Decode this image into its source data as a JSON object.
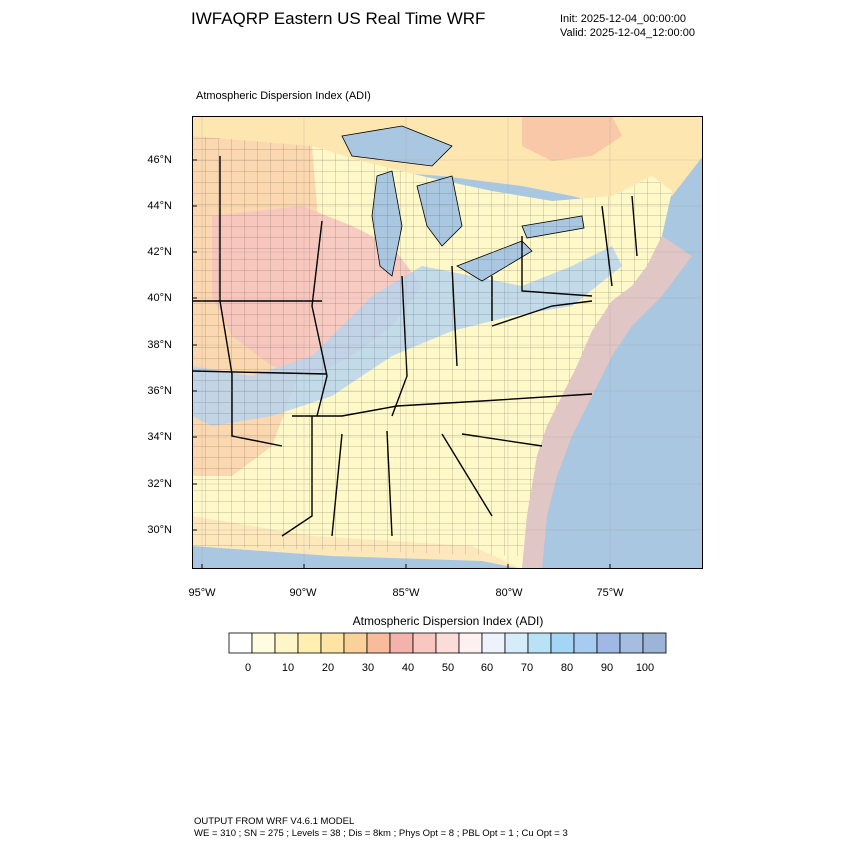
{
  "header": {
    "title": "IWFAQRP Eastern US Real Time WRF",
    "init": "Init: 2025-12-04_00:00:00",
    "valid": "Valid: 2025-12-04_12:00:00"
  },
  "field_title": "Atmospheric Dispersion Index   (ADI)",
  "lat_labels": [
    "46°N",
    "44°N",
    "42°N",
    "40°N",
    "38°N",
    "36°N",
    "34°N",
    "32°N",
    "30°N"
  ],
  "lon_labels": [
    "95°W",
    "90°W",
    "85°W",
    "80°W",
    "75°W"
  ],
  "colorbar": {
    "title": "Atmospheric Dispersion Index  (ADI)",
    "labels": [
      "0",
      "10",
      "20",
      "30",
      "40",
      "50",
      "60",
      "70",
      "80",
      "90",
      "100"
    ],
    "colors": [
      "#ffffff",
      "#fffce0",
      "#fff6c8",
      "#ffefb0",
      "#fde4a4",
      "#fbd19a",
      "#f6bc9c",
      "#f4b3aa",
      "#f8c7c0",
      "#fcdcd8",
      "#fdf0f0",
      "#eef2fc",
      "#d6ecf8",
      "#b9e2f6",
      "#a3d6f4",
      "#a8cbf2",
      "#a0b8e6",
      "#a4bde0",
      "#9eb4d6"
    ]
  },
  "map_colors": {
    "ocean": "#a9c7e1",
    "lakes": "#a9c7e1",
    "land_south": "#fff8c8",
    "land_warm": "#fbd8b0",
    "land_pink": "#f6c3bf",
    "land_blue": "#b8d5ee",
    "coast_band": "#f8c6b8"
  },
  "footer": {
    "line1": "OUTPUT FROM WRF V4.6.1 MODEL",
    "line2": "WE = 310 ; SN = 275 ; Levels = 38 ; Dis = 8km ; Phys Opt = 8 ; PBL Opt = 1 ; Cu Opt = 3"
  }
}
